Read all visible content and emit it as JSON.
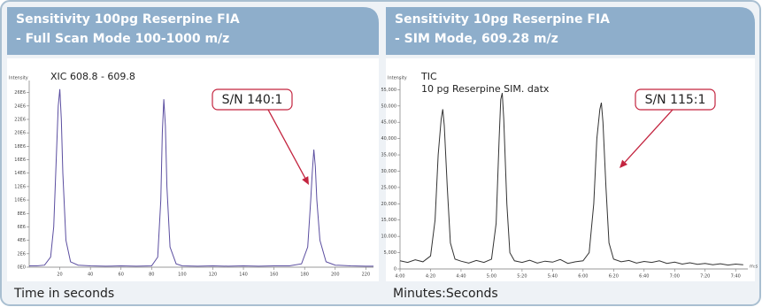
{
  "chart_data": [
    {
      "type": "line",
      "title": "Sensitivity 100pg Reserpine FIA",
      "subtitle": "- Full Scan Mode 100-1000 m/z",
      "ylabel": "Intensity",
      "labels": [
        "XIC 608.8 - 609.8"
      ],
      "xlabel": "Time in seconds",
      "annotation": "S/N 140:1",
      "xlim": [
        0,
        225
      ],
      "ylim": [
        0,
        27000000
      ],
      "xticks": [
        20,
        40,
        60,
        80,
        100,
        120,
        140,
        160,
        180,
        200,
        220
      ],
      "yticks": [
        {
          "value": 0,
          "label": "0E0"
        },
        {
          "value": 2000000,
          "label": "2E6"
        },
        {
          "value": 4000000,
          "label": "4E6"
        },
        {
          "value": 6000000,
          "label": "6E6"
        },
        {
          "value": 8000000,
          "label": "8E6"
        },
        {
          "value": 10000000,
          "label": "10E6"
        },
        {
          "value": 12000000,
          "label": "12E6"
        },
        {
          "value": 14000000,
          "label": "14E6"
        },
        {
          "value": 16000000,
          "label": "16E6"
        },
        {
          "value": 18000000,
          "label": "18E6"
        },
        {
          "value": 20000000,
          "label": "20E6"
        },
        {
          "value": 22000000,
          "label": "22E6"
        },
        {
          "value": 24000000,
          "label": "24E6"
        },
        {
          "value": 26000000,
          "label": "26E6"
        }
      ],
      "series": [
        {
          "color": "#5b4ea0",
          "x": [
            0,
            5,
            10,
            14,
            16,
            18,
            19,
            20,
            21,
            22,
            24,
            27,
            32,
            40,
            50,
            60,
            70,
            80,
            84,
            86,
            87,
            88,
            89,
            90,
            92,
            96,
            100,
            110,
            120,
            130,
            140,
            150,
            160,
            170,
            178,
            182,
            184,
            185,
            186,
            187,
            188,
            190,
            194,
            200,
            210,
            220,
            225
          ],
          "values": [
            200000,
            200000,
            300000,
            1500000,
            6000000,
            18000000,
            24000000,
            26500000,
            22000000,
            14000000,
            4000000,
            800000,
            300000,
            200000,
            150000,
            200000,
            150000,
            200000,
            1500000,
            10000000,
            20000000,
            25000000,
            21000000,
            12000000,
            3000000,
            500000,
            200000,
            150000,
            200000,
            150000,
            200000,
            150000,
            200000,
            200000,
            500000,
            3000000,
            10000000,
            14000000,
            17500000,
            15000000,
            10000000,
            4000000,
            800000,
            300000,
            200000,
            150000,
            150000
          ]
        }
      ]
    },
    {
      "type": "line",
      "title": "Sensitivity 10pg Reserpine FIA",
      "subtitle": "- SIM Mode, 609.28 m/z",
      "ylabel": "Intensity",
      "labels": [
        "TIC",
        "10 pg Reserpine SIM. datx"
      ],
      "xlabel": "Minutes:Seconds",
      "xunit": "m:s",
      "annotation": "S/N 115:1",
      "xlim": [
        240,
        468
      ],
      "ylim": [
        0,
        57000
      ],
      "xticks": [
        {
          "value": 240,
          "label": "4:00"
        },
        {
          "value": 260,
          "label": "4:20"
        },
        {
          "value": 280,
          "label": "4:40"
        },
        {
          "value": 300,
          "label": "5:00"
        },
        {
          "value": 320,
          "label": "5:20"
        },
        {
          "value": 340,
          "label": "5:40"
        },
        {
          "value": 360,
          "label": "6:00"
        },
        {
          "value": 380,
          "label": "6:20"
        },
        {
          "value": 400,
          "label": "6:40"
        },
        {
          "value": 420,
          "label": "7:00"
        },
        {
          "value": 440,
          "label": "7:20"
        },
        {
          "value": 460,
          "label": "7:40"
        }
      ],
      "yticks": [
        0,
        {
          "value": 5000,
          "label": "5,000"
        },
        {
          "value": 10000,
          "label": "10,000"
        },
        {
          "value": 15000,
          "label": "15,000"
        },
        {
          "value": 20000,
          "label": "20,000"
        },
        {
          "value": 25000,
          "label": "25,000"
        },
        {
          "value": 30000,
          "label": "30,000"
        },
        {
          "value": 35000,
          "label": "35,000"
        },
        {
          "value": 40000,
          "label": "40,000"
        },
        {
          "value": 45000,
          "label": "45,000"
        },
        {
          "value": 50000,
          "label": "50,000"
        },
        {
          "value": 55000,
          "label": "55,000"
        }
      ],
      "series": [
        {
          "color": "#333333",
          "x": [
            240,
            245,
            250,
            255,
            260,
            263,
            265,
            267,
            268,
            269,
            271,
            273,
            276,
            280,
            285,
            290,
            295,
            300,
            303,
            305,
            306,
            307,
            308,
            310,
            312,
            315,
            320,
            325,
            330,
            335,
            340,
            345,
            350,
            355,
            360,
            364,
            367,
            369,
            371,
            372,
            373,
            375,
            377,
            380,
            385,
            390,
            395,
            400,
            405,
            410,
            415,
            420,
            425,
            430,
            435,
            440,
            445,
            450,
            455,
            460,
            465
          ],
          "values": [
            2500,
            2000,
            2800,
            2200,
            4000,
            15000,
            35000,
            46000,
            49000,
            44000,
            25000,
            8000,
            3000,
            2400,
            1800,
            2600,
            2000,
            3000,
            14000,
            40000,
            52000,
            54000,
            46000,
            20000,
            5000,
            2500,
            2000,
            2700,
            1800,
            2400,
            2100,
            2900,
            1700,
            2200,
            2500,
            5000,
            20000,
            40000,
            49000,
            51000,
            45000,
            25000,
            8000,
            3000,
            2200,
            2600,
            1800,
            2300,
            2000,
            2500,
            1700,
            2100,
            1500,
            1900,
            1400,
            1700,
            1300,
            1600,
            1200,
            1500,
            1300
          ]
        }
      ]
    }
  ]
}
